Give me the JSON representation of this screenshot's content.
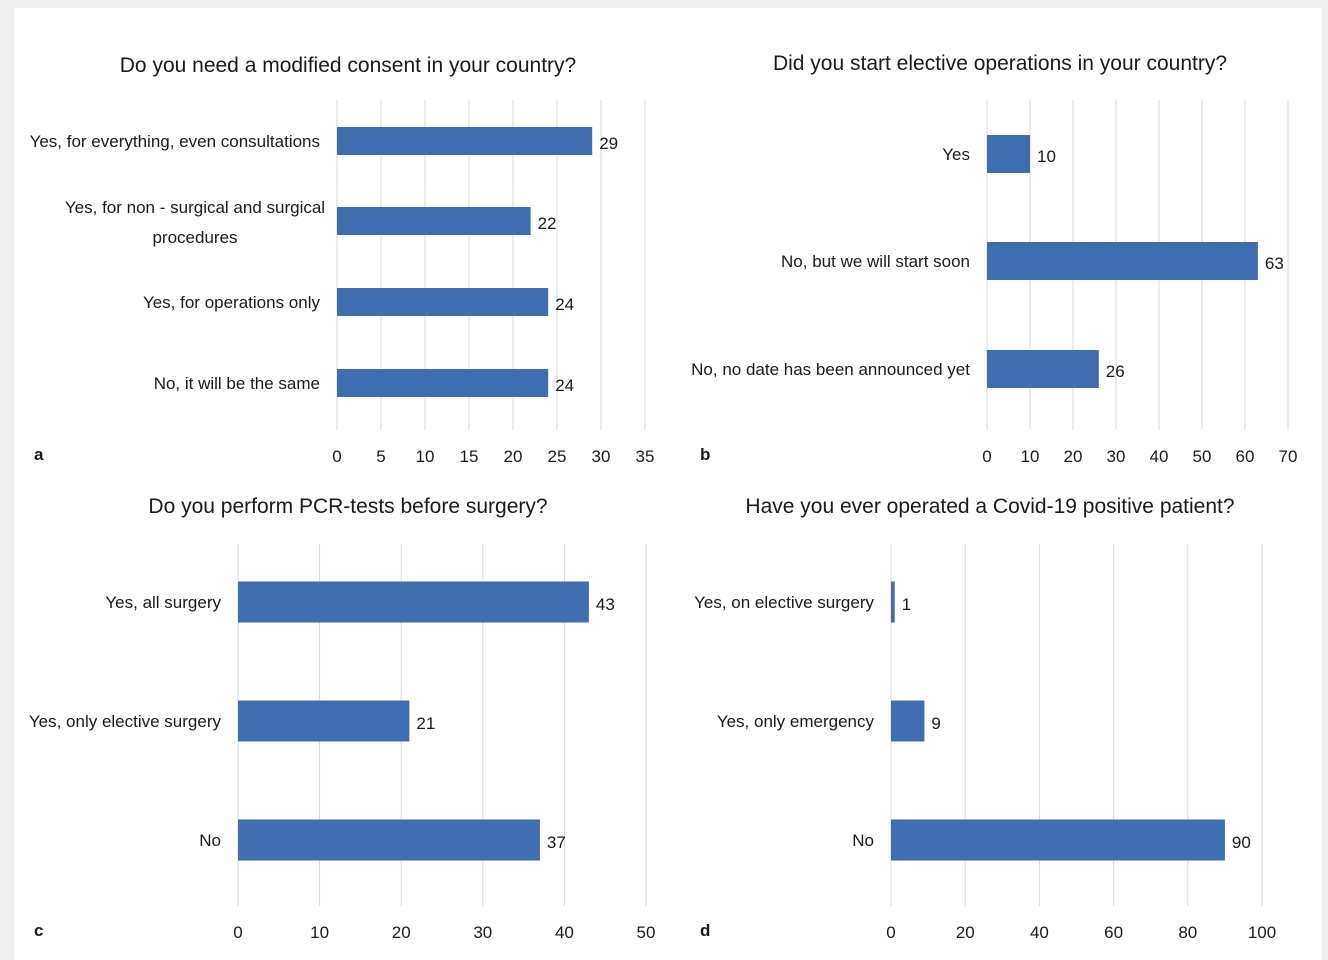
{
  "chart_data": [
    {
      "type": "bar",
      "orientation": "horizontal",
      "panel": "a",
      "title": "Do you need a modified consent in your country?",
      "categories": [
        "Yes, for everything, even consultations",
        "Yes, for non - surgical and surgical procedures",
        "Yes, for operations only",
        "No, it will be the same"
      ],
      "values": [
        29,
        22,
        24,
        24
      ],
      "xlim": [
        0,
        35
      ],
      "xticks": [
        0,
        5,
        10,
        15,
        20,
        25,
        30,
        35
      ],
      "xtick_labels": [
        "0",
        "5",
        "10",
        "15",
        "20",
        "25",
        "30",
        "35"
      ],
      "data_labels": [
        "29",
        "22",
        "24",
        "24"
      ],
      "grid": true,
      "color": "#3e6db0"
    },
    {
      "type": "bar",
      "orientation": "horizontal",
      "panel": "b",
      "title": "Did you start elective operations in your country?",
      "categories": [
        "Yes",
        "No, but we will start soon",
        "No, no date has been announced yet"
      ],
      "values": [
        10,
        63,
        26
      ],
      "xlim": [
        0,
        70
      ],
      "xticks": [
        0,
        10,
        20,
        30,
        40,
        50,
        60,
        70
      ],
      "xtick_labels": [
        "0",
        "10",
        "20",
        "30",
        "40",
        "50",
        "60",
        "70"
      ],
      "data_labels": [
        "10",
        "63",
        "26"
      ],
      "grid": true,
      "color": "#3e6db0"
    },
    {
      "type": "bar",
      "orientation": "horizontal",
      "panel": "c",
      "title": "Do you perform PCR-tests before surgery?",
      "categories": [
        "Yes, all surgery",
        "Yes, only elective surgery",
        "No"
      ],
      "values": [
        43,
        21,
        37
      ],
      "xlim": [
        0,
        50
      ],
      "xticks": [
        0,
        10,
        20,
        30,
        40,
        50
      ],
      "xtick_labels": [
        "0",
        "10",
        "20",
        "30",
        "40",
        "50"
      ],
      "data_labels": [
        "43",
        "21",
        "37"
      ],
      "grid": true,
      "color": "#3e6db0"
    },
    {
      "type": "bar",
      "orientation": "horizontal",
      "panel": "d",
      "title": "Have you ever operated a Covid-19 positive patient?",
      "categories": [
        "Yes, on elective surgery",
        "Yes, only emergency",
        "No"
      ],
      "values": [
        1,
        9,
        90
      ],
      "xlim": [
        0,
        100
      ],
      "xticks": [
        0,
        20,
        40,
        60,
        80,
        100
      ],
      "xtick_labels": [
        "0",
        "20",
        "40",
        "60",
        "80",
        "100"
      ],
      "data_labels": [
        "1",
        "9",
        "90"
      ],
      "grid": true,
      "color": "#3e6db0"
    }
  ]
}
